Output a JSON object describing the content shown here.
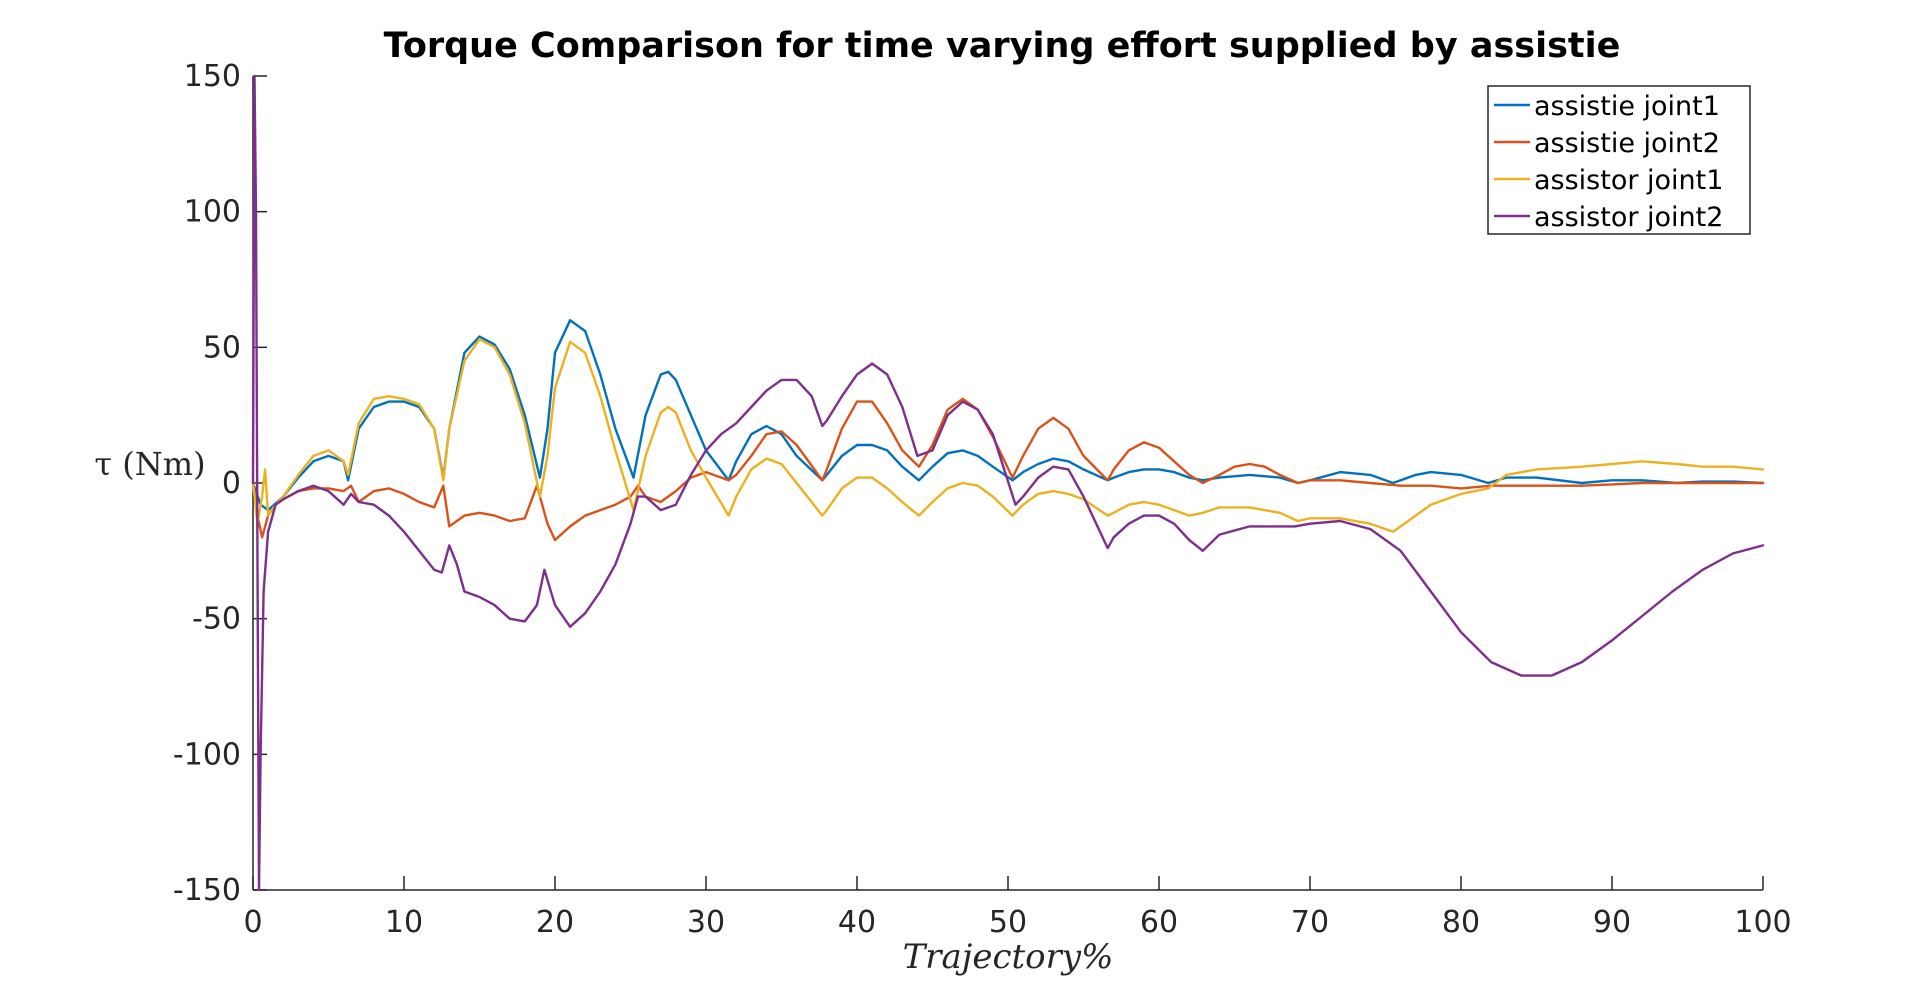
{
  "chart_data": {
    "type": "line",
    "title": "Torque Comparison for time varying effort supplied by assistie",
    "xlabel": "Trajectory%",
    "ylabel": "τ (Nm)",
    "xlim": [
      0,
      100
    ],
    "ylim": [
      -150,
      150
    ],
    "xticks": [
      0,
      10,
      20,
      30,
      40,
      50,
      60,
      70,
      80,
      90,
      100
    ],
    "yticks": [
      150,
      100,
      50,
      0,
      -50,
      -100,
      -150
    ],
    "xtick_labels": [
      "0",
      "10",
      "20",
      "30",
      "40",
      "50",
      "60",
      "70",
      "80",
      "90",
      "100"
    ],
    "ytick_labels": [
      "150",
      "100",
      "50",
      "0",
      "-50",
      "-100",
      "-150"
    ],
    "grid": false,
    "legend_position": "top-right",
    "series": [
      {
        "name": "assistie joint1",
        "color": "#0072BD",
        "x": [
          0,
          0.5,
          1,
          2,
          3,
          4,
          5,
          6,
          6.3,
          7,
          8,
          9,
          10,
          11,
          12,
          12.6,
          13,
          14,
          15,
          16,
          17,
          18,
          19,
          19.5,
          20,
          21,
          22,
          23,
          24,
          25.2,
          26,
          27,
          27.5,
          28,
          29,
          30,
          31.5,
          32,
          33,
          34,
          35,
          36,
          37.7,
          38,
          39,
          40,
          41,
          42,
          43,
          44.1,
          45,
          46,
          47,
          48,
          49,
          50.3,
          51,
          52,
          53,
          54,
          55,
          56.6,
          57,
          58,
          59,
          60,
          61,
          62,
          62.9,
          64,
          66,
          68,
          69.2,
          70,
          72,
          74,
          75.5,
          77,
          78,
          80,
          81.8,
          83,
          85,
          88,
          90,
          92,
          94.3,
          96,
          98,
          100
        ],
        "y": [
          0,
          -8,
          -10,
          -5,
          2,
          8,
          10,
          8,
          1,
          20,
          28,
          30,
          30,
          28,
          20,
          2,
          20,
          48,
          54,
          51,
          42,
          25,
          2,
          20,
          48,
          60,
          56,
          40,
          20,
          2,
          25,
          40,
          41,
          38,
          25,
          12,
          1,
          8,
          18,
          21,
          18,
          10,
          1,
          3,
          10,
          14,
          14,
          12,
          6,
          1,
          6,
          11,
          12,
          10,
          6,
          1,
          4,
          7,
          9,
          8,
          5,
          1,
          2,
          4,
          5,
          5,
          4,
          2,
          1,
          2,
          3,
          2,
          0,
          1,
          4,
          3,
          0,
          3,
          4,
          3,
          0,
          2,
          2,
          0,
          1,
          1,
          0,
          0.5,
          0.5,
          0
        ]
      },
      {
        "name": "assistie joint2",
        "color": "#D95319",
        "x": [
          0,
          0.3,
          0.6,
          1,
          1.5,
          2,
          3,
          4,
          5,
          6,
          6.5,
          7,
          8,
          9,
          10,
          11,
          12,
          12.6,
          13,
          14,
          15,
          16,
          17,
          18,
          18.8,
          19.5,
          20,
          21,
          22,
          23,
          24,
          25,
          25.5,
          26,
          27,
          28,
          29,
          30,
          31.5,
          32,
          33,
          34,
          35,
          36,
          37.7,
          38,
          39,
          40,
          41,
          42,
          43,
          44.1,
          45,
          46,
          47,
          48,
          49,
          50.3,
          51,
          52,
          53,
          54,
          55,
          56.6,
          57,
          58,
          59,
          60,
          61,
          62,
          62.9,
          64,
          65,
          66,
          67,
          68,
          69.2,
          70,
          72,
          74,
          76,
          78,
          80,
          82,
          85,
          88,
          90,
          92,
          95,
          98,
          100
        ],
        "y": [
          0,
          -12,
          -20,
          -12,
          -8,
          -6,
          -3,
          -2,
          -2,
          -3,
          -1,
          -7,
          -3,
          -2,
          -4,
          -7,
          -9,
          -1,
          -16,
          -12,
          -11,
          -12,
          -14,
          -13,
          -1,
          -15,
          -21,
          -16,
          -12,
          -10,
          -8,
          -5,
          -1,
          -5,
          -7,
          -3,
          2,
          4,
          1,
          3,
          10,
          18,
          19,
          14,
          1,
          5,
          20,
          30,
          30,
          22,
          12,
          6,
          14,
          27,
          31,
          27,
          17,
          2,
          10,
          20,
          24,
          20,
          10,
          1,
          5,
          12,
          15,
          13,
          8,
          3,
          0,
          3,
          6,
          7,
          6,
          3,
          0,
          1,
          1,
          0,
          -1,
          -1,
          -2,
          -1,
          -1,
          -1,
          -0.5,
          0,
          0,
          0,
          0
        ]
      },
      {
        "name": "assistor joint1",
        "color": "#EDB120",
        "x": [
          0,
          0.3,
          0.6,
          0.8,
          1,
          1.5,
          2,
          3,
          4,
          5,
          6,
          6.3,
          7,
          8,
          9,
          10,
          11,
          12,
          12.6,
          13,
          14,
          15,
          16,
          17,
          18,
          19,
          19.5,
          20,
          21,
          22,
          23,
          24,
          25.2,
          26,
          27,
          27.5,
          28,
          29,
          30,
          31.5,
          32,
          33,
          34,
          35,
          36,
          37.7,
          38,
          39,
          40,
          41,
          42,
          43,
          44.1,
          45,
          46,
          47,
          48,
          49,
          50.3,
          51,
          52,
          53,
          54,
          55,
          56.6,
          57,
          58,
          59,
          60,
          61,
          62,
          62.9,
          64,
          66,
          68,
          69.2,
          70,
          72,
          74,
          75.5,
          77,
          78,
          80,
          81.8,
          83,
          85,
          88,
          90,
          92,
          94.3,
          96,
          98,
          100
        ],
        "y": [
          0,
          -15,
          -5,
          5,
          -12,
          -8,
          -5,
          3,
          10,
          12,
          8,
          3,
          22,
          31,
          32,
          31,
          29,
          20,
          1,
          20,
          45,
          53,
          50,
          40,
          22,
          -5,
          10,
          35,
          52,
          48,
          32,
          12,
          -10,
          10,
          26,
          28,
          26,
          12,
          2,
          -12,
          -5,
          5,
          9,
          7,
          0,
          -12,
          -10,
          -2,
          2,
          2,
          -2,
          -7,
          -12,
          -7,
          -2,
          0,
          -1,
          -5,
          -12,
          -8,
          -4,
          -3,
          -4,
          -6,
          -12,
          -11,
          -8,
          -7,
          -8,
          -10,
          -12,
          -11,
          -9,
          -9,
          -11,
          -14,
          -13,
          -13,
          -15,
          -18,
          -12,
          -8,
          -4,
          -2,
          3,
          5,
          6,
          7,
          8,
          7,
          6,
          6,
          5
        ]
      },
      {
        "name": "assistor joint2",
        "color": "#7E2F8E",
        "x": [
          0,
          0.1,
          0.2,
          0.3,
          0.4,
          0.5,
          0.7,
          1,
          1.5,
          2,
          3,
          4,
          5,
          6,
          6.5,
          7,
          8,
          9,
          10,
          11,
          12,
          12.5,
          13,
          13.5,
          14,
          15,
          16,
          17,
          18,
          18.8,
          19.3,
          20,
          21,
          22,
          23,
          24,
          25,
          25.5,
          26,
          27,
          28,
          29,
          30,
          31,
          32,
          33,
          34,
          35,
          36,
          37,
          37.7,
          38,
          39,
          40,
          41,
          42,
          43,
          44,
          45,
          46,
          47,
          48,
          49,
          50.5,
          51,
          52,
          53,
          54,
          55,
          56.6,
          57,
          58,
          59,
          60,
          61,
          62,
          62.9,
          64,
          66,
          68,
          69,
          70,
          72,
          74,
          76,
          78,
          80,
          82,
          84,
          86,
          88,
          90,
          92,
          94,
          96,
          98,
          100
        ],
        "y": [
          0,
          150,
          100,
          -30,
          -150,
          -100,
          -40,
          -18,
          -8,
          -6,
          -3,
          -1,
          -3,
          -8,
          -4,
          -7,
          -8,
          -12,
          -18,
          -25,
          -32,
          -33,
          -23,
          -30,
          -40,
          -42,
          -45,
          -50,
          -51,
          -45,
          -32,
          -45,
          -53,
          -48,
          -40,
          -30,
          -15,
          -5,
          -5,
          -10,
          -8,
          3,
          12,
          18,
          22,
          28,
          34,
          38,
          38,
          32,
          21,
          23,
          32,
          40,
          44,
          40,
          28,
          10,
          12,
          25,
          30,
          27,
          18,
          -8,
          -5,
          2,
          6,
          5,
          -5,
          -24,
          -20,
          -15,
          -12,
          -12,
          -15,
          -21,
          -25,
          -19,
          -16,
          -16,
          -16,
          -15,
          -14,
          -17,
          -25,
          -40,
          -55,
          -66,
          -71,
          -71,
          -66,
          -58,
          -49,
          -40,
          -32,
          -26,
          -23
        ]
      }
    ]
  }
}
